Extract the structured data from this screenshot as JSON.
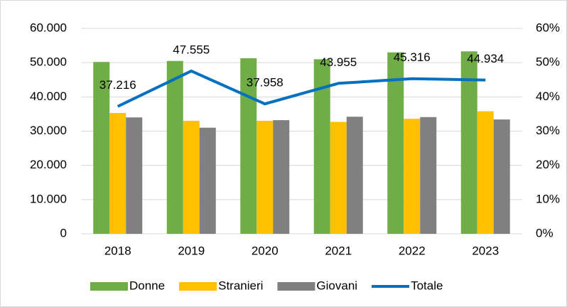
{
  "chart_data": {
    "type": "bar",
    "categories": [
      "2018",
      "2019",
      "2020",
      "2021",
      "2022",
      "2023"
    ],
    "series": [
      {
        "name": "Donne",
        "color": "#70ad47",
        "axis": "y2",
        "type": "bar",
        "values": [
          50.2,
          50.5,
          51.3,
          51.0,
          53.0,
          53.3
        ]
      },
      {
        "name": "Stranieri",
        "color": "#ffc000",
        "axis": "y2",
        "type": "bar",
        "values": [
          35.3,
          33.0,
          33.0,
          32.7,
          33.6,
          35.8
        ]
      },
      {
        "name": "Giovani",
        "color": "#808080",
        "axis": "y2",
        "type": "bar",
        "values": [
          34.0,
          31.0,
          33.2,
          34.2,
          34.1,
          33.4
        ]
      },
      {
        "name": "Totale",
        "color": "#0070c0",
        "type": "line",
        "values": [
          37216,
          47555,
          37958,
          43955,
          45316,
          44934
        ],
        "value_labels": [
          "37.216",
          "47.555",
          "37.958",
          "43.955",
          "45.316",
          "44.934"
        ]
      }
    ],
    "ylim": [
      0,
      60000
    ],
    "yticks": [
      {
        "value": 0,
        "label": "0"
      },
      {
        "value": 10000,
        "label": "10.000"
      },
      {
        "value": 20000,
        "label": "20.000"
      },
      {
        "value": 30000,
        "label": "30.000"
      },
      {
        "value": 40000,
        "label": "40.000"
      },
      {
        "value": 50000,
        "label": "50.000"
      },
      {
        "value": 60000,
        "label": "60.000"
      }
    ],
    "y2lim": [
      0,
      60
    ],
    "y2ticks": [
      {
        "value": 0,
        "label": "0%"
      },
      {
        "value": 10,
        "label": "10%"
      },
      {
        "value": 20,
        "label": "20%"
      },
      {
        "value": 30,
        "label": "30%"
      },
      {
        "value": 40,
        "label": "40%"
      },
      {
        "value": 50,
        "label": "50%"
      },
      {
        "value": 60,
        "label": "60%"
      }
    ],
    "grid": true,
    "legend": "bottom"
  }
}
